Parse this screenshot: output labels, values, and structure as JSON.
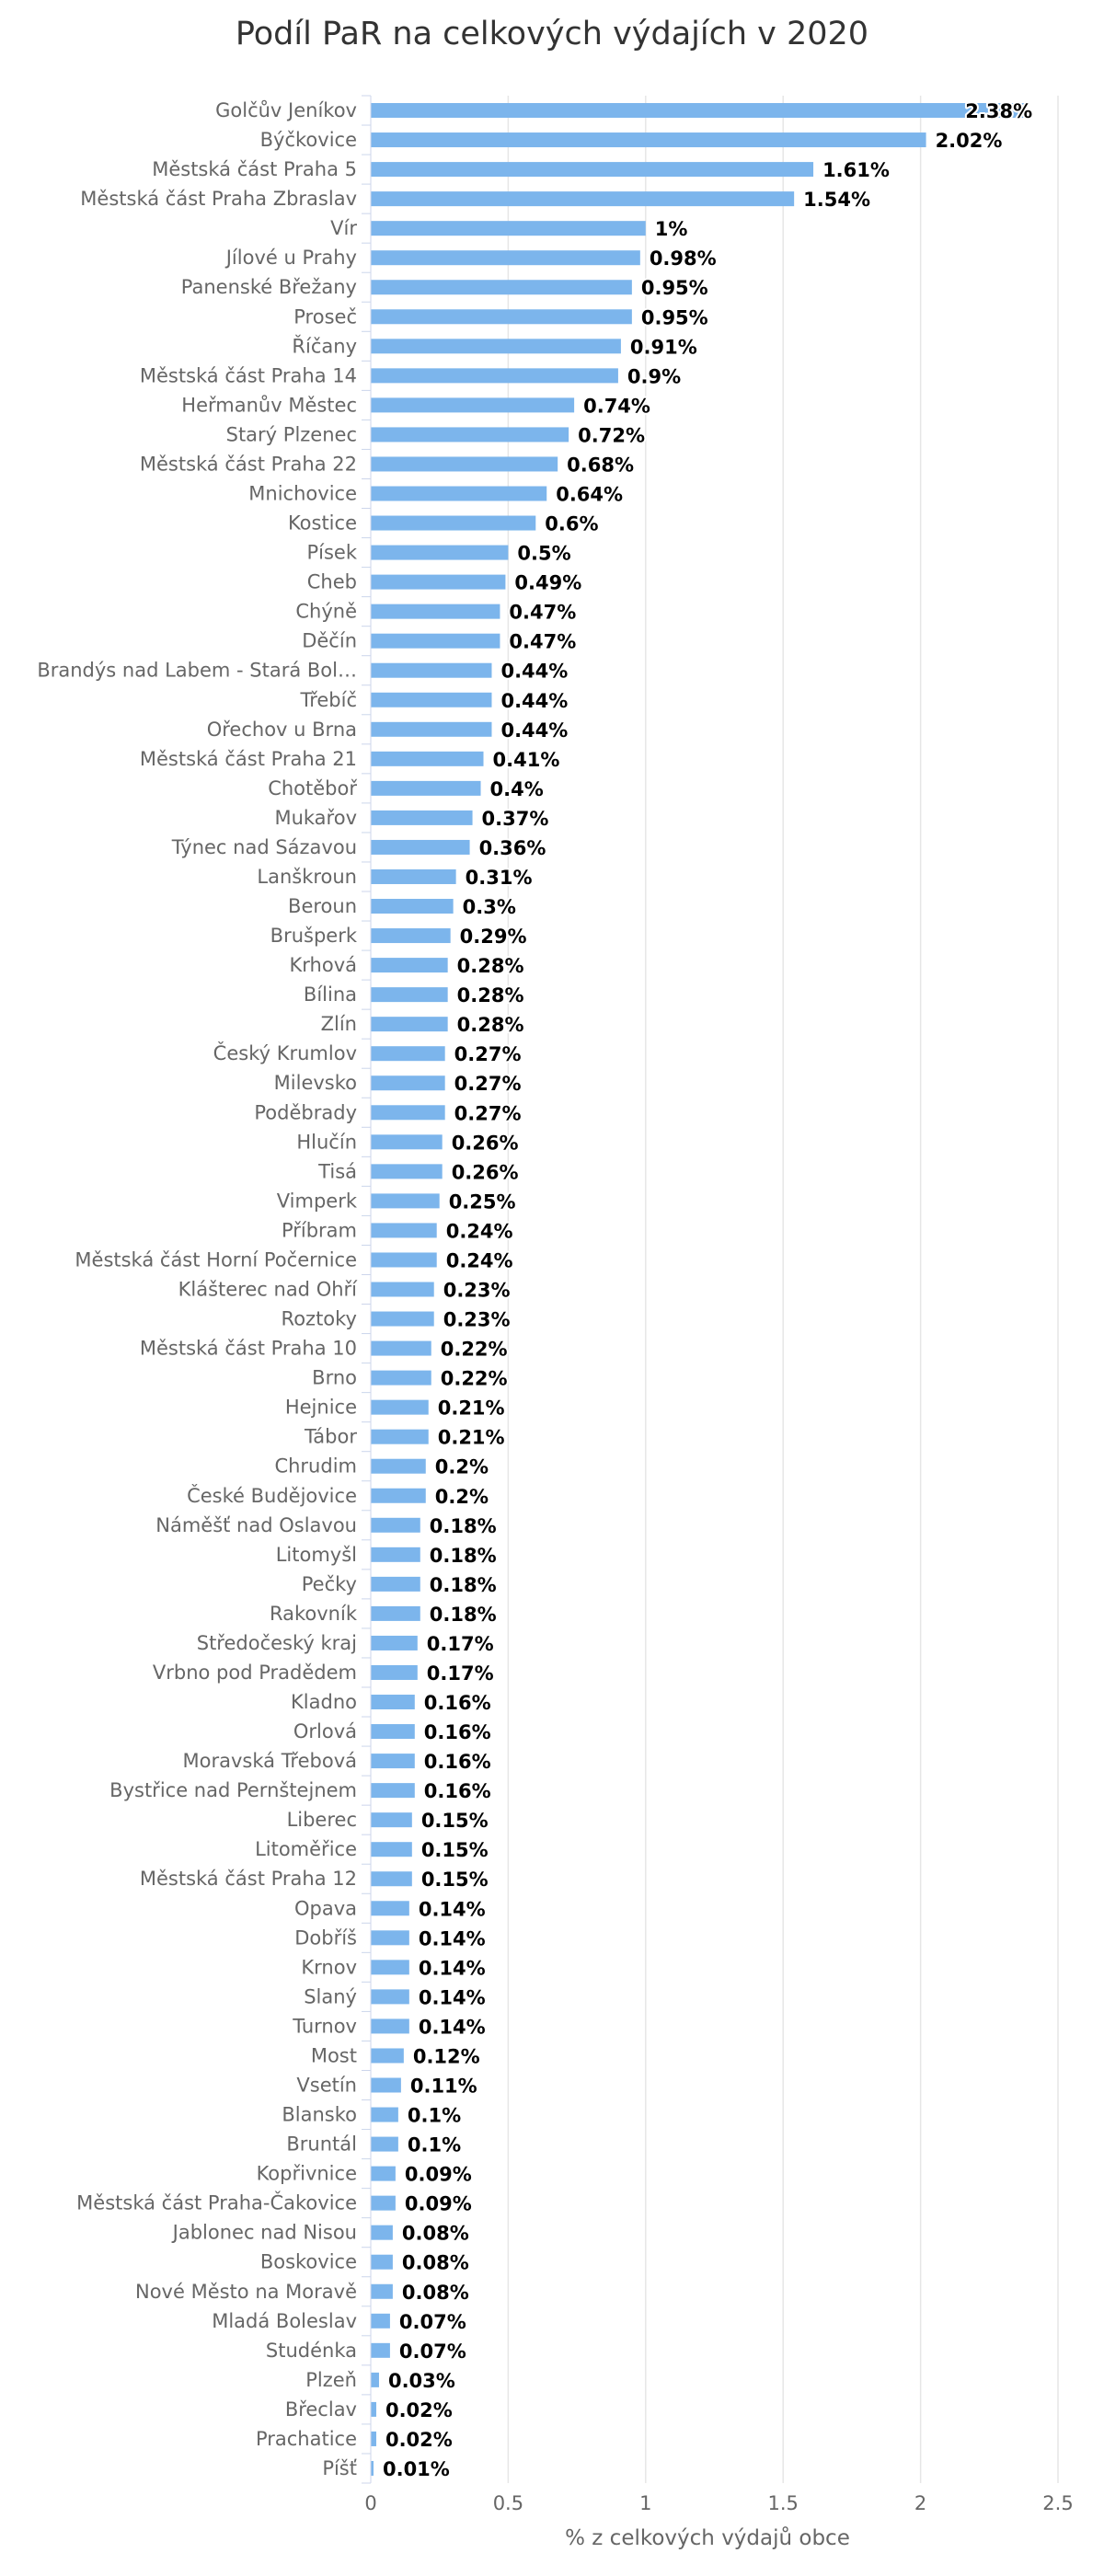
{
  "chart_data": {
    "type": "bar",
    "orientation": "horizontal",
    "title": "Podíl PaR na celkových výdajích v 2020",
    "xlabel": "% z celkových výdajů obce",
    "ylabel": "",
    "xlim": [
      0,
      2.5
    ],
    "xticks": [
      "0",
      "0.5",
      "1",
      "1.5",
      "2",
      "2.5"
    ],
    "grid": true,
    "color": "#7cb5ec",
    "categories": [
      "Golčův Jeníkov",
      "Býčkovice",
      "Městská část Praha 5",
      "Městská část Praha Zbraslav",
      "Vír",
      "Jílové u Prahy",
      "Panenské Břežany",
      "Proseč",
      "Říčany",
      "Městská část Praha 14",
      "Heřmanův Městec",
      "Starý Plzenec",
      "Městská část Praha 22",
      "Mnichovice",
      "Kostice",
      "Písek",
      "Cheb",
      "Chýně",
      "Děčín",
      "Brandýs nad Labem - Stará Bol…",
      "Třebíč",
      "Ořechov u Brna",
      "Městská část Praha 21",
      "Chotěboř",
      "Mukařov",
      "Týnec nad Sázavou",
      "Lanškroun",
      "Beroun",
      "Brušperk",
      "Krhová",
      "Bílina",
      "Zlín",
      "Český Krumlov",
      "Milevsko",
      "Poděbrady",
      "Hlučín",
      "Tisá",
      "Vimperk",
      "Příbram",
      "Městská část Horní Počernice",
      "Klášterec nad Ohří",
      "Roztoky",
      "Městská část Praha 10",
      "Brno",
      "Hejnice",
      "Tábor",
      "Chrudim",
      "České Budějovice",
      "Náměšť nad Oslavou",
      "Litomyšl",
      "Pečky",
      "Rakovník",
      "Středočeský kraj",
      "Vrbno pod Pradědem",
      "Kladno",
      "Orlová",
      "Moravská Třebová",
      "Bystřice nad Pernštejnem",
      "Liberec",
      "Litoměřice",
      "Městská část Praha 12",
      "Opava",
      "Dobříš",
      "Krnov",
      "Slaný",
      "Turnov",
      "Most",
      "Vsetín",
      "Blansko",
      "Bruntál",
      "Kopřivnice",
      "Městská část Praha-Čakovice",
      "Jablonec nad Nisou",
      "Boskovice",
      "Nové Město na Moravě",
      "Mladá Boleslav",
      "Studénka",
      "Plzeň",
      "Břeclav",
      "Prachatice",
      "Píšť"
    ],
    "values": [
      2.38,
      2.02,
      1.61,
      1.54,
      1,
      0.98,
      0.95,
      0.95,
      0.91,
      0.9,
      0.74,
      0.72,
      0.68,
      0.64,
      0.6,
      0.5,
      0.49,
      0.47,
      0.47,
      0.44,
      0.44,
      0.44,
      0.41,
      0.4,
      0.37,
      0.36,
      0.31,
      0.3,
      0.29,
      0.28,
      0.28,
      0.28,
      0.27,
      0.27,
      0.27,
      0.26,
      0.26,
      0.25,
      0.24,
      0.24,
      0.23,
      0.23,
      0.22,
      0.22,
      0.21,
      0.21,
      0.2,
      0.2,
      0.18,
      0.18,
      0.18,
      0.18,
      0.17,
      0.17,
      0.16,
      0.16,
      0.16,
      0.16,
      0.15,
      0.15,
      0.15,
      0.14,
      0.14,
      0.14,
      0.14,
      0.14,
      0.12,
      0.11,
      0.1,
      0.1,
      0.09,
      0.09,
      0.08,
      0.08,
      0.08,
      0.07,
      0.07,
      0.03,
      0.02,
      0.02,
      0.01
    ],
    "data_labels": [
      "2.38%",
      "2.02%",
      "1.61%",
      "1.54%",
      "1%",
      "0.98%",
      "0.95%",
      "0.95%",
      "0.91%",
      "0.9%",
      "0.74%",
      "0.72%",
      "0.68%",
      "0.64%",
      "0.6%",
      "0.5%",
      "0.49%",
      "0.47%",
      "0.47%",
      "0.44%",
      "0.44%",
      "0.44%",
      "0.41%",
      "0.4%",
      "0.37%",
      "0.36%",
      "0.31%",
      "0.3%",
      "0.29%",
      "0.28%",
      "0.28%",
      "0.28%",
      "0.27%",
      "0.27%",
      "0.27%",
      "0.26%",
      "0.26%",
      "0.25%",
      "0.24%",
      "0.24%",
      "0.23%",
      "0.23%",
      "0.22%",
      "0.22%",
      "0.21%",
      "0.21%",
      "0.2%",
      "0.2%",
      "0.18%",
      "0.18%",
      "0.18%",
      "0.18%",
      "0.17%",
      "0.17%",
      "0.16%",
      "0.16%",
      "0.16%",
      "0.16%",
      "0.15%",
      "0.15%",
      "0.15%",
      "0.14%",
      "0.14%",
      "0.14%",
      "0.14%",
      "0.14%",
      "0.12%",
      "0.11%",
      "0.1%",
      "0.1%",
      "0.09%",
      "0.09%",
      "0.08%",
      "0.08%",
      "0.08%",
      "0.07%",
      "0.07%",
      "0.03%",
      "0.02%",
      "0.02%",
      "0.01%"
    ]
  }
}
